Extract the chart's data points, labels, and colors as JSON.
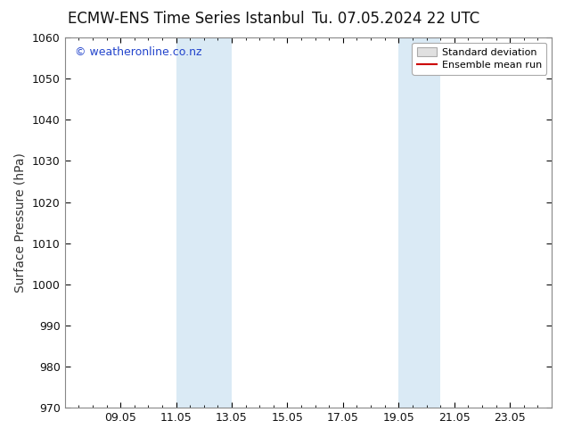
{
  "title_left": "ECMW-ENS Time Series Istanbul",
  "title_right": "Tu. 07.05.2024 22 UTC",
  "ylabel": "Surface Pressure (hPa)",
  "ylim": [
    970,
    1060
  ],
  "yticks": [
    970,
    980,
    990,
    1000,
    1010,
    1020,
    1030,
    1040,
    1050,
    1060
  ],
  "xtick_labels": [
    "09.05",
    "11.05",
    "13.05",
    "15.05",
    "17.05",
    "19.05",
    "21.05",
    "23.05"
  ],
  "xtick_positions": [
    2,
    4,
    6,
    8,
    10,
    12,
    14,
    16
  ],
  "xlim": [
    0,
    17.5
  ],
  "shaded_regions": [
    {
      "x_start": 4,
      "x_end": 6
    },
    {
      "x_start": 12,
      "x_end": 13.5
    }
  ],
  "shaded_color": "#daeaf5",
  "watermark_text": "© weatheronline.co.nz",
  "watermark_color": "#2244cc",
  "legend_items": [
    {
      "label": "Standard deviation",
      "type": "patch",
      "facecolor": "#e0e0e0",
      "edgecolor": "#aaaaaa"
    },
    {
      "label": "Ensemble mean run",
      "type": "line",
      "color": "#cc0000"
    }
  ],
  "background_color": "#ffffff",
  "spine_color": "#888888",
  "tick_label_color": "#111111",
  "title_fontsize": 12,
  "axis_label_fontsize": 10,
  "watermark_fontsize": 9,
  "legend_fontsize": 8
}
